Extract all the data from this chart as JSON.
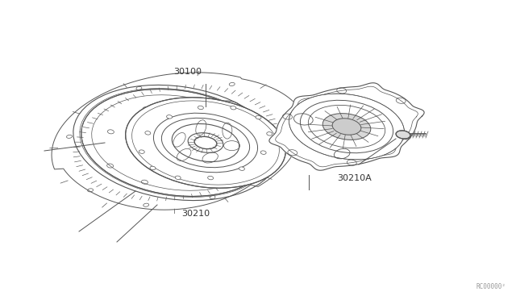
{
  "bg_color": "#ffffff",
  "line_color": "#555555",
  "label_color": "#333333",
  "fig_width": 6.4,
  "fig_height": 3.72,
  "dpi": 100,
  "watermark": "RC00000²",
  "xlim": [
    0,
    640
  ],
  "ylim": [
    0,
    372
  ]
}
